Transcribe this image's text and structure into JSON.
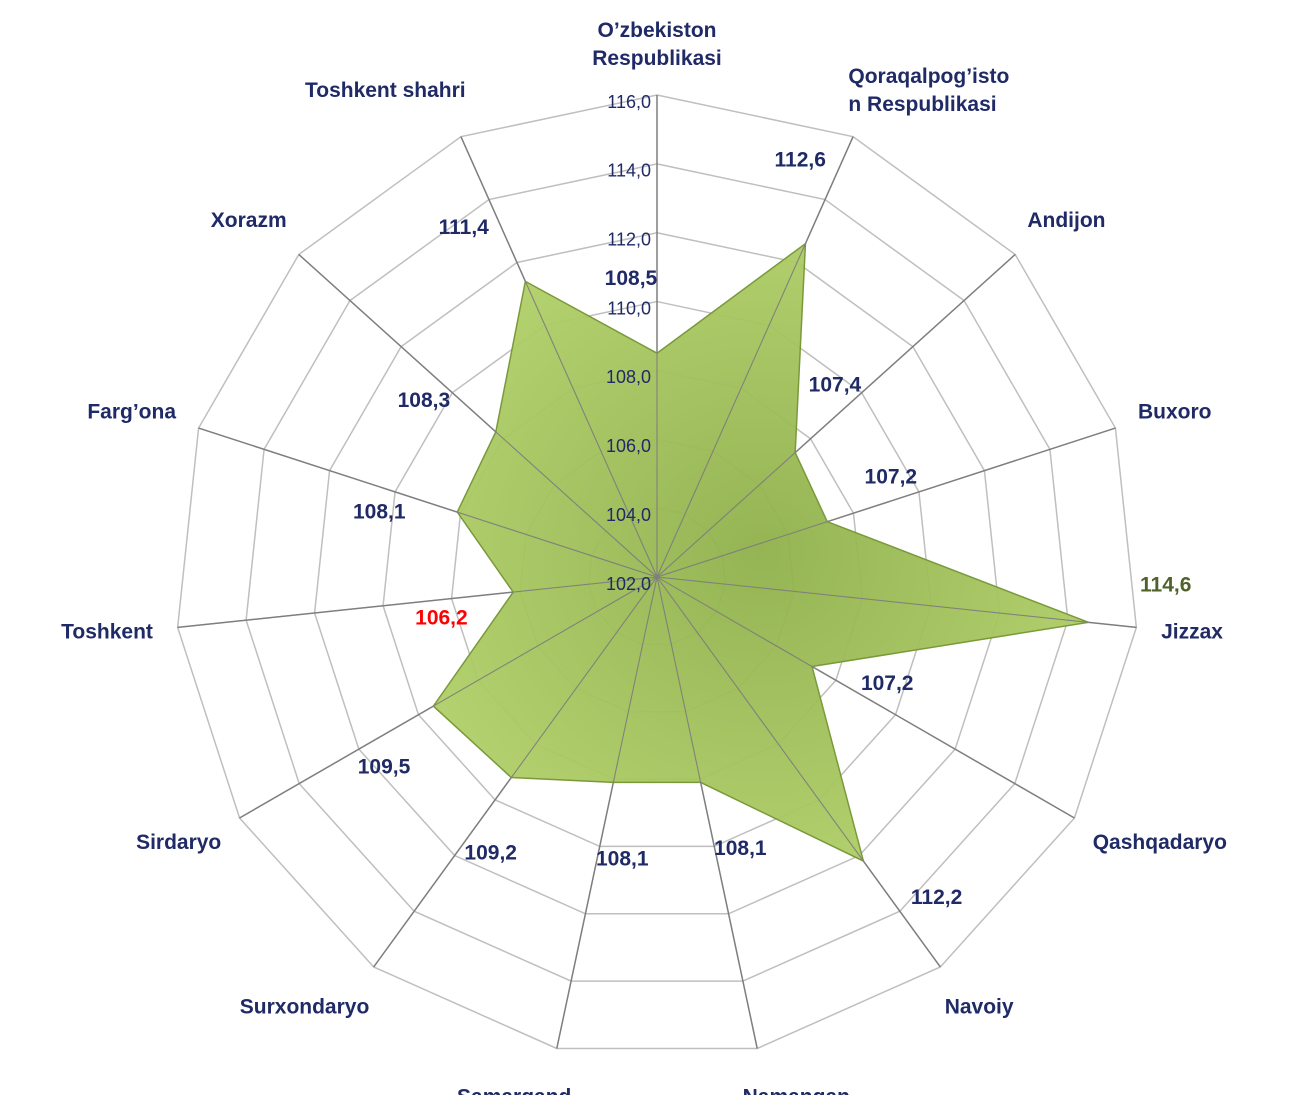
{
  "chart_data": {
    "type": "radar",
    "categories": [
      [
        "O’zbekiston",
        "Respublikasi"
      ],
      [
        "Qoraqalpog’isto",
        "n Respublikasi"
      ],
      [
        "Andijon"
      ],
      [
        "Buxoro"
      ],
      [
        "Jizzax"
      ],
      [
        "Qashqadaryo"
      ],
      [
        "Navoiy"
      ],
      [
        "Namangan"
      ],
      [
        "Samarqand"
      ],
      [
        "Surxondaryo"
      ],
      [
        "Sirdaryo"
      ],
      [
        "Toshkent"
      ],
      [
        "Farg’ona"
      ],
      [
        "Xorazm"
      ],
      [
        "Toshkent shahri"
      ]
    ],
    "values": [
      108.5,
      112.6,
      107.4,
      107.2,
      114.6,
      107.2,
      112.2,
      108.1,
      108.1,
      109.2,
      109.5,
      106.2,
      108.1,
      108.3,
      111.4
    ],
    "value_labels": [
      "108,5",
      "112,6",
      "107,4",
      "107,2",
      "114,6",
      "107,2",
      "112,2",
      "108,1",
      "108,1",
      "109,2",
      "109,5",
      "106,2",
      "108,1",
      "108,3",
      "111,4"
    ],
    "value_label_colors": [
      "#1f2a66",
      "#1f2a66",
      "#1f2a66",
      "#1f2a66",
      "#4f6228",
      "#1f2a66",
      "#1f2a66",
      "#1f2a66",
      "#1f2a66",
      "#1f2a66",
      "#1f2a66",
      "#ff0000",
      "#1f2a66",
      "#1f2a66",
      "#1f2a66"
    ],
    "color": "#9bbb59",
    "ylim": [
      102,
      116
    ],
    "yticks": [
      {
        "value": 102,
        "label": "102,0"
      },
      {
        "value": 104,
        "label": "104,0"
      },
      {
        "value": 106,
        "label": "106,0"
      },
      {
        "value": 108,
        "label": "108,0"
      },
      {
        "value": 110,
        "label": "110,0"
      },
      {
        "value": 112,
        "label": "112,0"
      },
      {
        "value": 114,
        "label": "114,0"
      },
      {
        "value": 116,
        "label": "116,0"
      }
    ],
    "grid": true
  }
}
